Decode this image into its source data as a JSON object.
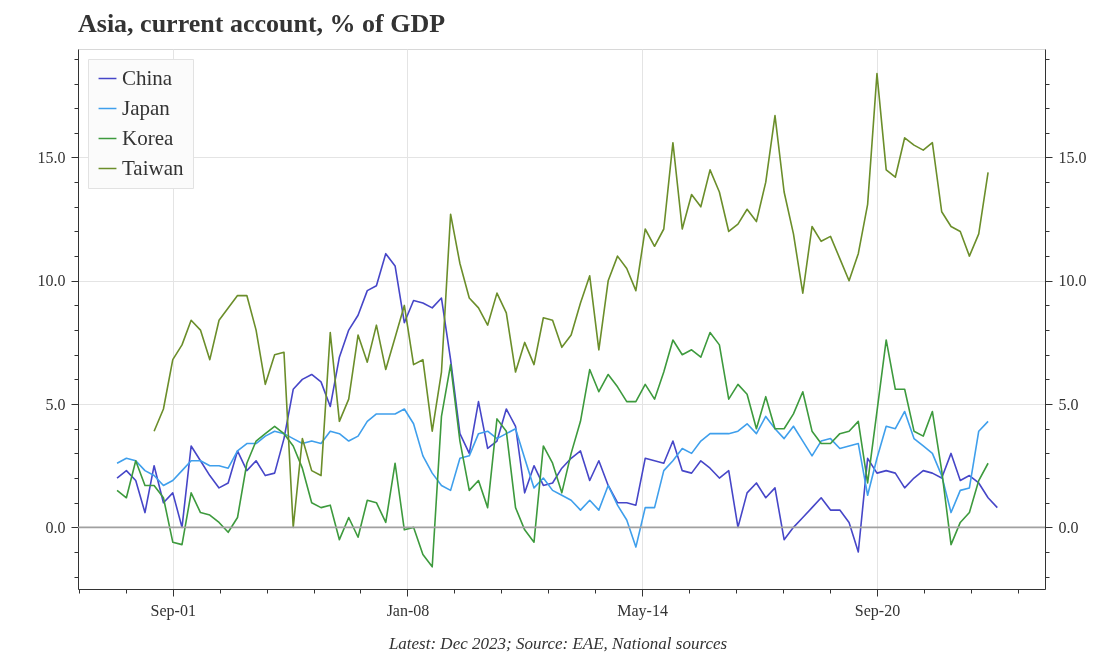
{
  "chart_data": {
    "type": "line",
    "title": "Asia, current account, % of GDP",
    "annotations": [
      "Latest: Dec 2023; Source: EAE, National sources"
    ],
    "x": [
      "2000-03",
      "2000-06",
      "2000-09",
      "2000-12",
      "2001-03",
      "2001-06",
      "2001-09",
      "2001-12",
      "2002-03",
      "2002-06",
      "2002-09",
      "2002-12",
      "2003-03",
      "2003-06",
      "2003-09",
      "2003-12",
      "2004-03",
      "2004-06",
      "2004-09",
      "2004-12",
      "2005-03",
      "2005-06",
      "2005-09",
      "2005-12",
      "2006-03",
      "2006-06",
      "2006-09",
      "2006-12",
      "2007-03",
      "2007-06",
      "2007-09",
      "2007-12",
      "2008-03",
      "2008-06",
      "2008-09",
      "2008-12",
      "2009-03",
      "2009-06",
      "2009-09",
      "2009-12",
      "2010-03",
      "2010-06",
      "2010-09",
      "2010-12",
      "2011-03",
      "2011-06",
      "2011-09",
      "2011-12",
      "2012-03",
      "2012-06",
      "2012-09",
      "2012-12",
      "2013-03",
      "2013-06",
      "2013-09",
      "2013-12",
      "2014-03",
      "2014-06",
      "2014-09",
      "2014-12",
      "2015-03",
      "2015-06",
      "2015-09",
      "2015-12",
      "2016-03",
      "2016-06",
      "2016-09",
      "2016-12",
      "2017-03",
      "2017-06",
      "2017-09",
      "2017-12",
      "2018-03",
      "2018-06",
      "2018-09",
      "2018-12",
      "2019-03",
      "2019-06",
      "2019-09",
      "2019-12",
      "2020-03",
      "2020-06",
      "2020-09",
      "2020-12",
      "2021-03",
      "2021-06",
      "2021-09",
      "2021-12",
      "2022-03",
      "2022-06",
      "2022-09",
      "2022-12",
      "2023-03",
      "2023-06",
      "2023-09",
      "2023-12"
    ],
    "series": [
      {
        "name": "China",
        "color": "#4646c8",
        "values": [
          2.0,
          2.3,
          1.9,
          0.6,
          2.5,
          1.0,
          1.4,
          0.0,
          3.3,
          2.7,
          2.1,
          1.6,
          1.8,
          3.1,
          2.3,
          2.7,
          2.1,
          2.2,
          3.6,
          5.6,
          6.0,
          6.2,
          5.9,
          4.9,
          6.9,
          8.0,
          8.6,
          9.6,
          9.8,
          11.1,
          10.6,
          8.3,
          9.2,
          9.1,
          8.9,
          9.3,
          6.8,
          3.8,
          3.0,
          5.1,
          3.2,
          3.5,
          4.8,
          4.1,
          1.4,
          2.5,
          1.7,
          1.8,
          2.4,
          2.8,
          3.1,
          1.9,
          2.7,
          1.7,
          1.0,
          1.0,
          0.9,
          2.8,
          2.7,
          2.6,
          3.5,
          2.3,
          2.2,
          2.7,
          2.4,
          2.0,
          2.3,
          0.0,
          1.4,
          1.8,
          1.2,
          1.6,
          -0.5,
          0.0,
          0.4,
          0.8,
          1.2,
          0.7,
          0.7,
          0.2,
          -1.0,
          2.8,
          2.2,
          2.3,
          2.2,
          1.6,
          2.0,
          2.3,
          2.2,
          2.0,
          3.0,
          1.9,
          2.1,
          1.8,
          1.2,
          0.8
        ]
      },
      {
        "name": "Japan",
        "color": "#3f9fec",
        "values": [
          2.6,
          2.8,
          2.7,
          2.3,
          2.1,
          1.7,
          1.9,
          2.3,
          2.7,
          2.7,
          2.5,
          2.5,
          2.4,
          3.1,
          3.4,
          3.4,
          3.7,
          3.9,
          3.8,
          3.6,
          3.4,
          3.5,
          3.4,
          3.9,
          3.8,
          3.5,
          3.7,
          4.3,
          4.6,
          4.6,
          4.6,
          4.8,
          4.2,
          2.9,
          2.2,
          1.7,
          1.5,
          2.8,
          2.9,
          3.8,
          3.9,
          3.6,
          3.8,
          4.0,
          2.8,
          1.6,
          2.0,
          1.5,
          1.3,
          1.1,
          0.7,
          1.1,
          0.7,
          1.7,
          0.9,
          0.3,
          -0.8,
          0.8,
          0.8,
          2.3,
          2.7,
          3.2,
          3.0,
          3.5,
          3.8,
          3.8,
          3.8,
          3.9,
          4.2,
          3.8,
          4.5,
          4.0,
          3.6,
          4.1,
          3.5,
          2.9,
          3.5,
          3.6,
          3.2,
          3.3,
          3.4,
          1.3,
          2.8,
          4.1,
          4.0,
          4.7,
          3.6,
          3.3,
          3.0,
          2.1,
          0.6,
          1.5,
          1.6,
          3.9,
          4.3,
          null
        ]
      },
      {
        "name": "Korea",
        "color": "#3d9a3d",
        "values": [
          1.5,
          1.2,
          2.7,
          1.7,
          1.7,
          1.2,
          -0.6,
          -0.7,
          1.4,
          0.6,
          0.5,
          0.2,
          -0.2,
          0.4,
          2.6,
          3.5,
          3.8,
          4.1,
          3.8,
          3.3,
          2.4,
          1.0,
          0.8,
          0.9,
          -0.5,
          0.4,
          -0.4,
          1.1,
          1.0,
          0.2,
          2.6,
          -0.1,
          0.0,
          -1.1,
          -1.6,
          4.5,
          6.6,
          3.5,
          1.5,
          1.9,
          0.8,
          4.4,
          3.9,
          0.8,
          -0.1,
          -0.6,
          3.3,
          2.6,
          1.4,
          3.0,
          4.3,
          6.4,
          5.5,
          6.2,
          5.7,
          5.1,
          5.1,
          5.8,
          5.2,
          6.3,
          7.6,
          7.0,
          7.2,
          6.9,
          7.9,
          7.4,
          5.2,
          5.8,
          5.4,
          4.0,
          5.3,
          4.0,
          4.0,
          4.6,
          5.5,
          3.9,
          3.4,
          3.4,
          3.8,
          3.9,
          4.3,
          1.8,
          4.7,
          7.6,
          5.6,
          5.6,
          3.9,
          3.7,
          4.7,
          2.3,
          -0.7,
          0.2,
          0.6,
          1.9,
          2.6,
          null
        ]
      },
      {
        "name": "Taiwan",
        "color": "#6b8e2a",
        "values": [
          null,
          null,
          null,
          null,
          3.9,
          4.8,
          6.8,
          7.4,
          8.4,
          8.0,
          6.8,
          8.4,
          8.9,
          9.4,
          9.4,
          8.0,
          5.8,
          7.0,
          7.1,
          0.0,
          3.6,
          2.3,
          2.1,
          7.9,
          4.3,
          5.2,
          7.8,
          6.7,
          8.2,
          6.4,
          7.7,
          9.0,
          6.6,
          6.8,
          3.9,
          6.3,
          12.7,
          10.7,
          9.3,
          8.9,
          8.2,
          9.5,
          8.7,
          6.3,
          7.5,
          6.6,
          8.5,
          8.4,
          7.3,
          7.8,
          9.1,
          10.2,
          7.2,
          10.0,
          11.0,
          10.5,
          9.6,
          12.1,
          11.4,
          12.1,
          15.6,
          12.1,
          13.5,
          13.0,
          14.5,
          13.6,
          12.0,
          12.3,
          12.9,
          12.4,
          14.0,
          16.7,
          13.6,
          11.9,
          9.5,
          12.2,
          11.6,
          11.8,
          10.9,
          10.0,
          11.1,
          13.1,
          18.4,
          14.5,
          14.2,
          15.8,
          15.5,
          15.3,
          15.6,
          12.8,
          12.2,
          12.0,
          11.0,
          11.9,
          14.4,
          null
        ]
      }
    ],
    "xlim": [
      "1999-02-10",
      "2025-03-15"
    ],
    "xticks": [
      {
        "value": "1999-02-18",
        "label": null
      },
      {
        "value": "2000-05-25",
        "label": null
      },
      {
        "value": "2001-09-01",
        "label": "Sep-01"
      },
      {
        "value": "2002-12-07",
        "label": null
      },
      {
        "value": "2004-03-13",
        "label": null
      },
      {
        "value": "2005-06-19",
        "label": null
      },
      {
        "value": "2006-09-25",
        "label": null
      },
      {
        "value": "2008-01-01",
        "label": "Jan-08"
      },
      {
        "value": "2009-04-07",
        "label": null
      },
      {
        "value": "2010-07-13",
        "label": null
      },
      {
        "value": "2011-10-19",
        "label": null
      },
      {
        "value": "2013-01-25",
        "label": null
      },
      {
        "value": "2014-05-01",
        "label": "May-14"
      },
      {
        "value": "2015-08-07",
        "label": null
      },
      {
        "value": "2016-11-13",
        "label": null
      },
      {
        "value": "2018-02-19",
        "label": null
      },
      {
        "value": "2019-05-25",
        "label": null
      },
      {
        "value": "2020-09-01",
        "label": "Sep-20"
      },
      {
        "value": "2021-12-07",
        "label": null
      },
      {
        "value": "2023-03-13",
        "label": null
      },
      {
        "value": "2024-06-19",
        "label": null
      }
    ],
    "ylim": [
      -2.5,
      19.4
    ],
    "yticks": [
      {
        "value": -2,
        "label": null
      },
      {
        "value": -1,
        "label": null
      },
      {
        "value": 0,
        "label": "0.0"
      },
      {
        "value": 1,
        "label": null
      },
      {
        "value": 2,
        "label": null
      },
      {
        "value": 3,
        "label": null
      },
      {
        "value": 4,
        "label": null
      },
      {
        "value": 5,
        "label": "5.0"
      },
      {
        "value": 6,
        "label": null
      },
      {
        "value": 7,
        "label": null
      },
      {
        "value": 8,
        "label": null
      },
      {
        "value": 9,
        "label": null
      },
      {
        "value": 10,
        "label": "10.0"
      },
      {
        "value": 11,
        "label": null
      },
      {
        "value": 12,
        "label": null
      },
      {
        "value": 13,
        "label": null
      },
      {
        "value": 14,
        "label": null
      },
      {
        "value": 15,
        "label": "15.0"
      },
      {
        "value": 16,
        "label": null
      },
      {
        "value": 17,
        "label": null
      },
      {
        "value": 18,
        "label": null
      },
      {
        "value": 19,
        "label": null
      }
    ],
    "y2lim": [
      -2.5,
      19.4
    ],
    "y2ticks": [
      {
        "value": -2,
        "label": null
      },
      {
        "value": -1,
        "label": null
      },
      {
        "value": 0,
        "label": "0.0"
      },
      {
        "value": 1,
        "label": null
      },
      {
        "value": 2,
        "label": null
      },
      {
        "value": 3,
        "label": null
      },
      {
        "value": 4,
        "label": null
      },
      {
        "value": 5,
        "label": "5.0"
      },
      {
        "value": 6,
        "label": null
      },
      {
        "value": 7,
        "label": null
      },
      {
        "value": 8,
        "label": null
      },
      {
        "value": 9,
        "label": null
      },
      {
        "value": 10,
        "label": "10.0"
      },
      {
        "value": 11,
        "label": null
      },
      {
        "value": 12,
        "label": null
      },
      {
        "value": 13,
        "label": null
      },
      {
        "value": 14,
        "label": null
      },
      {
        "value": 15,
        "label": "15.0"
      },
      {
        "value": 16,
        "label": null
      },
      {
        "value": 17,
        "label": null
      },
      {
        "value": 18,
        "label": null
      },
      {
        "value": 19,
        "label": null
      }
    ],
    "ref_lines": [
      {
        "axis": "y",
        "value": 0,
        "color": "#a0a0a0"
      }
    ],
    "grid": true,
    "legend": "top left"
  }
}
